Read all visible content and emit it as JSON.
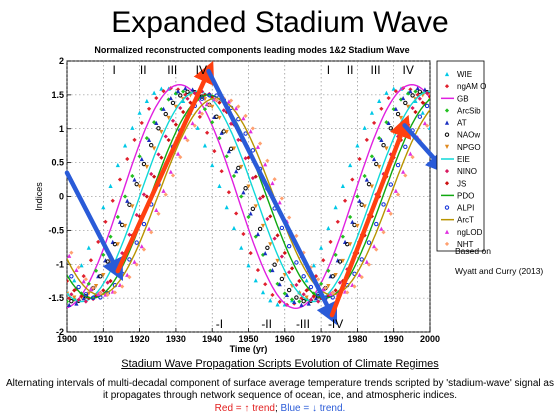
{
  "title": "Expanded Stadium Wave",
  "chart_data": {
    "type": "line",
    "title": "Normalized reconstructed components leading modes 1&2 Stadium Wave",
    "xlabel": "Time (yr)",
    "ylabel": "Indices",
    "xlim": [
      1900,
      2000
    ],
    "ylim": [
      -2,
      2
    ],
    "xticks": [
      1900,
      1910,
      1920,
      1930,
      1940,
      1950,
      1960,
      1970,
      1980,
      1990,
      2000
    ],
    "yticks": [
      -2,
      -1.5,
      -1,
      -0.5,
      0,
      0.5,
      1,
      1.5,
      2
    ],
    "grid": true,
    "legend_position": "right",
    "phase_labels_top": [
      {
        "label": "I",
        "x": 1913
      },
      {
        "label": "II",
        "x": 1921
      },
      {
        "label": "III",
        "x": 1929
      },
      {
        "label": "IV",
        "x": 1937
      },
      {
        "label": "I",
        "x": 1972
      },
      {
        "label": "II",
        "x": 1978
      },
      {
        "label": "III",
        "x": 1985
      },
      {
        "label": "IV",
        "x": 1994
      }
    ],
    "phase_labels_bottom": [
      {
        "label": "-I",
        "x": 1942
      },
      {
        "label": "-II",
        "x": 1955
      },
      {
        "label": "-III",
        "x": 1965
      },
      {
        "label": "-IV",
        "x": 1974
      }
    ],
    "series": [
      {
        "name": "WIE",
        "color": "#00c8e6",
        "marker": "triangle",
        "peak": 1927,
        "amp": 1.6
      },
      {
        "name": "ngAM O",
        "color": "#e0202e",
        "marker": "diamond",
        "peak": 1929,
        "amp": 1.6
      },
      {
        "name": "GB",
        "color": "#e020e0",
        "marker": "line",
        "peak": 1931,
        "amp": 1.65
      },
      {
        "name": "ArcSib",
        "color": "#22c020",
        "marker": "diamond",
        "peak": 1932,
        "amp": 1.55
      },
      {
        "name": "AT",
        "color": "#1a2fc0",
        "marker": "triangle",
        "peak": 1933,
        "amp": 1.6
      },
      {
        "name": "NAOw",
        "color": "#0a0a0a",
        "marker": "circle",
        "peak": 1934,
        "amp": 1.55
      },
      {
        "name": "NPGO",
        "color": "#e08a20",
        "marker": "triangle-down",
        "peak": 1935,
        "amp": 1.5
      },
      {
        "name": "EIE",
        "color": "#10d8d8",
        "marker": "line",
        "peak": 1936,
        "amp": 1.55
      },
      {
        "name": "NINO",
        "color": "#d81a60",
        "marker": "diamond",
        "peak": 1937,
        "amp": 1.55
      },
      {
        "name": "JS",
        "color": "#cc1010",
        "marker": "diamond",
        "peak": 1938,
        "amp": 1.5
      },
      {
        "name": "PDO",
        "color": "#10a810",
        "marker": "line",
        "peak": 1939,
        "amp": 1.5
      },
      {
        "name": "ALPI",
        "color": "#1030d8",
        "marker": "circle",
        "peak": 1940,
        "amp": 1.5
      },
      {
        "name": "ArcT",
        "color": "#b89400",
        "marker": "line",
        "peak": 1941,
        "amp": 1.45
      },
      {
        "name": "ngLOD",
        "color": "#e030e0",
        "marker": "triangle",
        "peak": 1942,
        "amp": 1.45
      },
      {
        "name": "NHT",
        "color": "#ffa070",
        "marker": "diamond",
        "peak": 1943,
        "amp": 1.45
      }
    ],
    "period": 64,
    "trend_arrows": [
      {
        "dir": "down",
        "color": "#2a5bd8",
        "from": [
          1900,
          0.35
        ],
        "to": [
          1914,
          -1.1
        ]
      },
      {
        "dir": "up",
        "color": "#ff4010",
        "from": [
          1914,
          -1.1
        ],
        "to": [
          1939,
          1.85
        ]
      },
      {
        "dir": "down",
        "color": "#2a5bd8",
        "from": [
          1939,
          1.85
        ],
        "to": [
          1973,
          -1.75
        ]
      },
      {
        "dir": "up",
        "color": "#ff4010",
        "from": [
          1973,
          -1.75
        ],
        "to": [
          1993,
          1.05
        ]
      },
      {
        "dir": "down",
        "color": "#2a5bd8",
        "from": [
          1993,
          1.05
        ],
        "to": [
          2003,
          0.45
        ]
      }
    ]
  },
  "caption_right": [
    "Based on",
    "Wyatt and Curry (2013)"
  ],
  "section_title": "Stadium Wave Propagation Scripts Evolution of Climate Regimes",
  "description": "Alternating intervals of multi-decadal component of surface average temperature trends scripted by 'stadium-wave' signal as it propagates through network sequence of ocean, ice, and atmospheric indices.",
  "legend_line": {
    "red": "Red = ↑ trend",
    "sep": "; ",
    "blue": "Blue = ↓ trend."
  }
}
